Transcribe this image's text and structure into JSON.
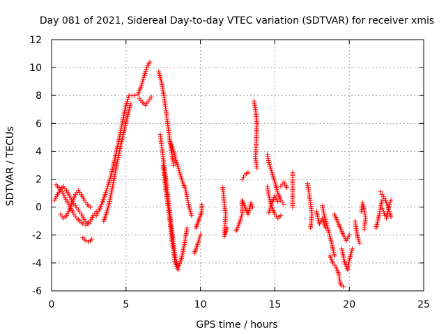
{
  "chart_data": {
    "type": "scatter",
    "title": "Day 081 of 2021, Sidereal Day-to-day VTEC variation (SDTVAR) for receiver xmis",
    "xlabel": "GPS time / hours",
    "ylabel": "SDTVAR / TECUs",
    "xlim": [
      0,
      25
    ],
    "ylim": [
      -6,
      12
    ],
    "xticks": [
      0,
      5,
      10,
      15,
      20,
      25
    ],
    "yticks": [
      -6,
      -4,
      -2,
      0,
      2,
      4,
      6,
      8,
      10,
      12
    ],
    "grid": true,
    "marker": "+",
    "color": "#ff0000",
    "series": [
      {
        "name": "SDTVAR",
        "segments": [
          [
            [
              0.2,
              0.5
            ],
            [
              0.4,
              0.9
            ],
            [
              0.6,
              1.3
            ],
            [
              0.8,
              1.5
            ],
            [
              1.0,
              1.2
            ],
            [
              1.2,
              0.8
            ],
            [
              1.4,
              0.4
            ],
            [
              1.6,
              0.1
            ],
            [
              1.8,
              -0.2
            ],
            [
              2.0,
              -0.5
            ],
            [
              2.2,
              -0.9
            ],
            [
              2.4,
              -1.2
            ],
            [
              2.6,
              -1.0
            ],
            [
              2.8,
              -0.6
            ],
            [
              3.0,
              -0.3
            ]
          ],
          [
            [
              0.3,
              1.6
            ],
            [
              0.5,
              1.4
            ],
            [
              0.7,
              1.1
            ],
            [
              0.9,
              0.7
            ],
            [
              1.1,
              0.3
            ],
            [
              1.3,
              -0.1
            ],
            [
              1.5,
              -0.5
            ],
            [
              1.7,
              -0.8
            ],
            [
              1.9,
              -1.0
            ],
            [
              2.1,
              -1.2
            ],
            [
              2.3,
              -1.3
            ],
            [
              2.5,
              -1.2
            ]
          ],
          [
            [
              0.6,
              -0.5
            ],
            [
              0.8,
              -0.8
            ],
            [
              1.0,
              -0.6
            ],
            [
              1.2,
              -0.2
            ],
            [
              1.4,
              0.4
            ],
            [
              1.6,
              0.9
            ],
            [
              1.8,
              1.2
            ],
            [
              2.0,
              0.9
            ],
            [
              2.2,
              0.5
            ],
            [
              2.4,
              0.2
            ],
            [
              2.6,
              0.0
            ]
          ],
          [
            [
              2.1,
              -2.2
            ],
            [
              2.3,
              -2.4
            ],
            [
              2.5,
              -2.5
            ],
            [
              2.7,
              -2.3
            ]
          ],
          [
            [
              3.0,
              -0.6
            ],
            [
              3.2,
              -0.2
            ],
            [
              3.4,
              0.3
            ],
            [
              3.6,
              0.9
            ],
            [
              3.8,
              1.6
            ],
            [
              4.0,
              2.3
            ],
            [
              4.2,
              3.2
            ],
            [
              4.4,
              4.2
            ],
            [
              4.6,
              5.2
            ],
            [
              4.8,
              6.3
            ],
            [
              5.0,
              7.3
            ],
            [
              5.2,
              8.0
            ],
            [
              5.4,
              8.0
            ]
          ],
          [
            [
              3.5,
              -1.0
            ],
            [
              3.7,
              -0.4
            ],
            [
              3.9,
              0.4
            ],
            [
              4.1,
              1.5
            ],
            [
              4.3,
              2.6
            ],
            [
              4.5,
              3.7
            ],
            [
              4.7,
              4.7
            ],
            [
              4.9,
              5.6
            ],
            [
              5.1,
              6.5
            ],
            [
              5.3,
              7.4
            ]
          ],
          [
            [
              5.6,
              8.0
            ],
            [
              5.8,
              8.1
            ],
            [
              6.0,
              8.6
            ],
            [
              6.2,
              9.3
            ],
            [
              6.4,
              10.0
            ],
            [
              6.6,
              10.4
            ]
          ],
          [
            [
              5.9,
              7.8
            ],
            [
              6.1,
              7.5
            ],
            [
              6.3,
              7.3
            ],
            [
              6.5,
              7.6
            ],
            [
              6.7,
              7.9
            ]
          ],
          [
            [
              7.2,
              9.7
            ],
            [
              7.4,
              8.9
            ],
            [
              7.6,
              7.6
            ],
            [
              7.8,
              6.0
            ],
            [
              8.0,
              4.3
            ],
            [
              8.2,
              3.0
            ]
          ],
          [
            [
              7.3,
              5.2
            ],
            [
              7.5,
              3.5
            ],
            [
              7.7,
              1.8
            ],
            [
              7.9,
              0.0
            ],
            [
              8.1,
              -1.8
            ],
            [
              8.3,
              -3.5
            ],
            [
              8.5,
              -4.3
            ],
            [
              8.7,
              -3.8
            ],
            [
              8.9,
              -2.8
            ],
            [
              9.1,
              -1.5
            ]
          ],
          [
            [
              7.5,
              3.0
            ],
            [
              7.7,
              1.0
            ],
            [
              7.9,
              -0.5
            ],
            [
              8.1,
              -2.5
            ],
            [
              8.3,
              -4.0
            ],
            [
              8.5,
              -4.5
            ]
          ],
          [
            [
              8.0,
              4.6
            ],
            [
              8.2,
              4.0
            ],
            [
              8.4,
              3.2
            ],
            [
              8.6,
              2.5
            ],
            [
              8.8,
              1.8
            ],
            [
              9.0,
              1.3
            ],
            [
              9.2,
              0.2
            ],
            [
              9.4,
              -0.6
            ]
          ],
          [
            [
              9.6,
              -3.3
            ],
            [
              9.8,
              -2.7
            ],
            [
              10.0,
              -2.0
            ]
          ],
          [
            [
              9.7,
              -1.5
            ],
            [
              9.9,
              -0.9
            ],
            [
              10.1,
              -0.3
            ],
            [
              10.1,
              0.2
            ]
          ],
          [
            [
              11.5,
              1.4
            ],
            [
              11.6,
              0.3
            ],
            [
              11.7,
              -0.5
            ],
            [
              11.6,
              -2.1
            ],
            [
              11.8,
              -1.5
            ]
          ],
          [
            [
              12.4,
              -1.7
            ],
            [
              12.6,
              -1.2
            ],
            [
              12.8,
              -0.5
            ],
            [
              12.8,
              0.5
            ],
            [
              13.0,
              0.0
            ],
            [
              13.2,
              -0.5
            ],
            [
              13.4,
              0.3
            ],
            [
              13.5,
              0.0
            ]
          ],
          [
            [
              12.8,
              2.0
            ],
            [
              13.0,
              2.3
            ],
            [
              13.2,
              2.5
            ]
          ],
          [
            [
              13.6,
              7.6
            ],
            [
              13.7,
              7.0
            ],
            [
              13.8,
              6.0
            ],
            [
              13.7,
              3.5
            ],
            [
              13.8,
              2.8
            ]
          ],
          [
            [
              14.5,
              3.8
            ],
            [
              14.6,
              3.2
            ],
            [
              14.8,
              2.5
            ],
            [
              15.0,
              1.8
            ],
            [
              15.2,
              1.0
            ],
            [
              15.4,
              0.5
            ],
            [
              15.6,
              0.2
            ]
          ],
          [
            [
              14.5,
              1.5
            ],
            [
              14.6,
              0.8
            ],
            [
              14.8,
              0.0
            ],
            [
              15.0,
              -0.5
            ],
            [
              15.2,
              -0.8
            ],
            [
              15.4,
              -0.6
            ]
          ],
          [
            [
              14.6,
              -0.4
            ],
            [
              14.8,
              0.3
            ],
            [
              15.0,
              0.8
            ],
            [
              15.2,
              0.4
            ]
          ],
          [
            [
              15.4,
              1.5
            ],
            [
              15.6,
              1.8
            ],
            [
              15.8,
              1.4
            ]
          ],
          [
            [
              16.2,
              2.5
            ],
            [
              16.2,
              0.0
            ]
          ],
          [
            [
              17.2,
              1.7
            ],
            [
              17.3,
              1.0
            ],
            [
              17.4,
              0.2
            ],
            [
              17.5,
              -0.5
            ],
            [
              17.4,
              -1.5
            ]
          ],
          [
            [
              17.8,
              -0.3
            ],
            [
              17.9,
              -0.8
            ],
            [
              18.0,
              -1.2
            ],
            [
              18.2,
              -0.8
            ],
            [
              18.4,
              -1.5
            ]
          ],
          [
            [
              18.2,
              0.1
            ],
            [
              18.3,
              -0.5
            ],
            [
              18.6,
              -1.7
            ],
            [
              18.8,
              -2.5
            ],
            [
              18.9,
              -3.0
            ],
            [
              19.0,
              -3.5
            ]
          ],
          [
            [
              18.7,
              -3.5
            ],
            [
              18.9,
              -4.0
            ],
            [
              19.1,
              -4.3
            ],
            [
              19.3,
              -4.8
            ],
            [
              19.4,
              -5.5
            ],
            [
              19.6,
              -5.7
            ]
          ],
          [
            [
              19.0,
              -0.5
            ],
            [
              19.2,
              -1.0
            ],
            [
              19.4,
              -1.5
            ],
            [
              19.6,
              -2.0
            ],
            [
              19.8,
              -2.4
            ],
            [
              20.0,
              -2.0
            ]
          ],
          [
            [
              19.5,
              -3.0
            ],
            [
              19.7,
              -4.0
            ],
            [
              19.9,
              -4.5
            ],
            [
              20.0,
              -3.8
            ],
            [
              20.2,
              -3.0
            ]
          ],
          [
            [
              20.4,
              -1.0
            ],
            [
              20.5,
              -1.8
            ],
            [
              20.6,
              -2.3
            ],
            [
              20.7,
              -2.6
            ]
          ],
          [
            [
              20.8,
              -0.3
            ],
            [
              20.9,
              0.3
            ],
            [
              21.0,
              -0.2
            ],
            [
              21.1,
              -0.8
            ],
            [
              21.0,
              -1.6
            ]
          ],
          [
            [
              21.8,
              -1.5
            ],
            [
              22.0,
              -0.6
            ],
            [
              22.1,
              0.0
            ],
            [
              22.2,
              0.5
            ]
          ],
          [
            [
              22.1,
              1.1
            ],
            [
              22.2,
              0.9
            ],
            [
              22.4,
              0.6
            ],
            [
              22.5,
              0.3
            ],
            [
              22.6,
              0.0
            ],
            [
              22.7,
              -0.3
            ],
            [
              22.8,
              -0.7
            ]
          ],
          [
            [
              22.2,
              -0.1
            ],
            [
              22.3,
              -0.3
            ],
            [
              22.4,
              -0.6
            ],
            [
              22.5,
              -0.8
            ],
            [
              22.7,
              0.2
            ],
            [
              22.8,
              0.5
            ]
          ]
        ]
      }
    ]
  }
}
